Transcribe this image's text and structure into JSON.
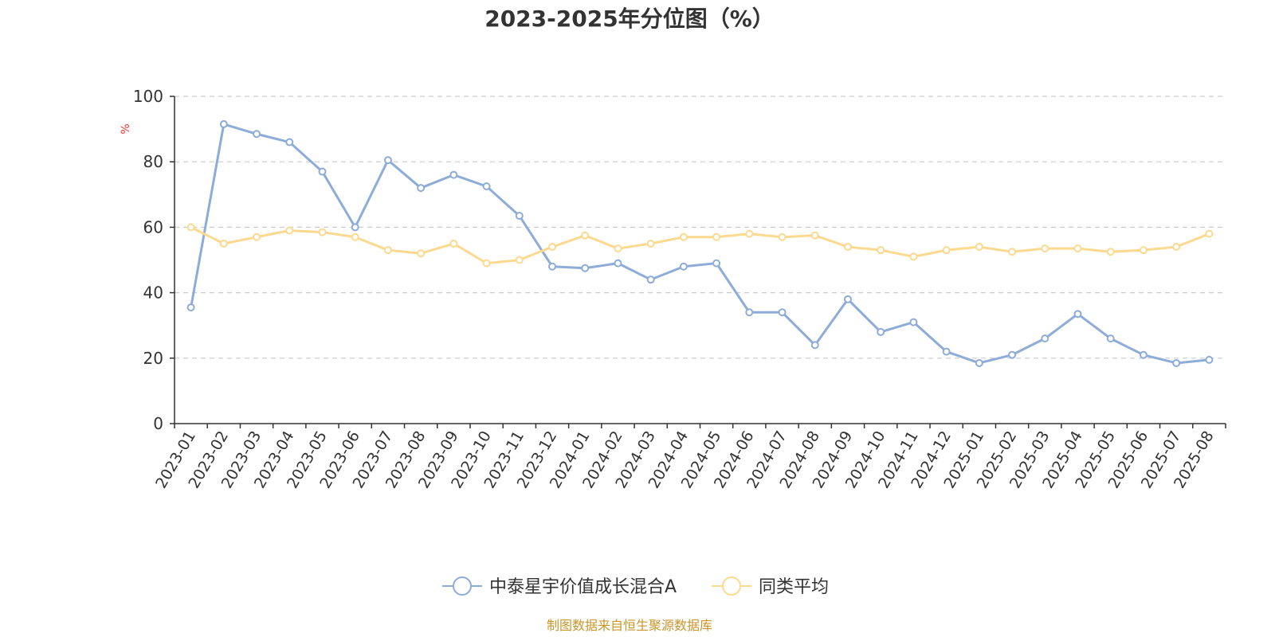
{
  "chart_data": {
    "type": "line",
    "title": "2023-2025年分位图（%）",
    "ylabel": "%",
    "ylim": [
      0,
      100
    ],
    "yticks": [
      0,
      20,
      40,
      60,
      80,
      100
    ],
    "grid": true,
    "legend_position": "bottom-center",
    "x": [
      "2023-01",
      "2023-02",
      "2023-03",
      "2023-04",
      "2023-05",
      "2023-06",
      "2023-07",
      "2023-08",
      "2023-09",
      "2023-10",
      "2023-11",
      "2023-12",
      "2024-01",
      "2024-02",
      "2024-03",
      "2024-04",
      "2024-05",
      "2024-06",
      "2024-07",
      "2024-08",
      "2024-09",
      "2024-10",
      "2024-11",
      "2024-12",
      "2025-01",
      "2025-02",
      "2025-03",
      "2025-04",
      "2025-05",
      "2025-06",
      "2025-07",
      "2025-08"
    ],
    "series": [
      {
        "name": "中泰星宇价值成长混合A",
        "color": "#8eacd8",
        "values": [
          35.5,
          91.5,
          88.5,
          86,
          77,
          60,
          80.5,
          72,
          76,
          72.5,
          63.5,
          48,
          47.5,
          49,
          44,
          48,
          49,
          34,
          34,
          24,
          38,
          28,
          31,
          22,
          18.5,
          21,
          26,
          33.5,
          26,
          21,
          18.5,
          19.5
        ]
      },
      {
        "name": "同类平均",
        "color": "#fbd98f",
        "values": [
          60,
          55,
          57,
          59,
          58.5,
          57,
          53,
          52,
          55,
          49,
          50,
          54,
          57.5,
          53.5,
          55,
          57,
          57,
          58,
          57,
          57.5,
          54,
          53,
          51,
          53,
          54,
          52.5,
          53.5,
          53.5,
          52.5,
          53,
          54,
          58
        ]
      }
    ]
  },
  "source_note": "制图数据来自恒生聚源数据库"
}
